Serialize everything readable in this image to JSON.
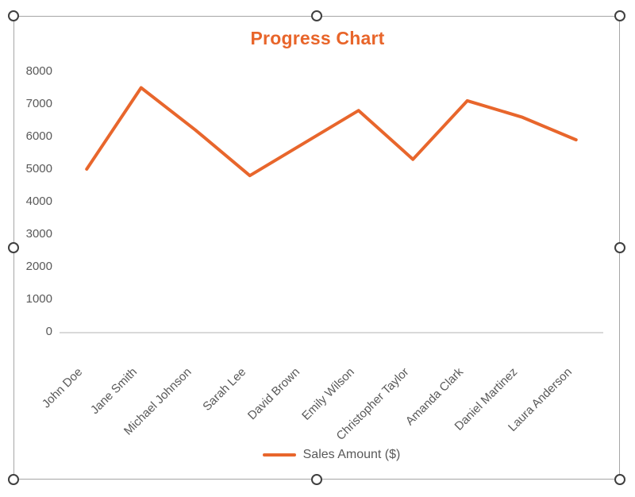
{
  "chart_data": {
    "type": "line",
    "title": "Progress Chart",
    "categories": [
      "John Doe",
      "Jane Smith",
      "Michael Johnson",
      "Sarah Lee",
      "David Brown",
      "Emily Wilson",
      "Christopher Taylor",
      "Amanda Clark",
      "Daniel Martinez",
      "Laura Anderson"
    ],
    "series": [
      {
        "name": "Sales Amount ($)",
        "values": [
          5000,
          7500,
          6200,
          4800,
          5800,
          6800,
          5300,
          7100,
          6600,
          5900
        ]
      }
    ],
    "ylim": [
      0,
      8000
    ],
    "ytick_step": 1000,
    "ytick_labels": [
      "8000",
      "7000",
      "6000",
      "5000",
      "4000",
      "3000",
      "2000",
      "1000",
      "0"
    ],
    "grid": false,
    "legend_position": "bottom",
    "colors": {
      "series_line": "#e8662c",
      "title": "#e8652a",
      "axis_text": "#595959",
      "axis_line": "#d9d9d9"
    }
  },
  "selection_frame": {
    "border_color": "#a6a6a6",
    "handle_ring_color": "#3f3f3f",
    "handle_fill_color": "#ffffff"
  }
}
